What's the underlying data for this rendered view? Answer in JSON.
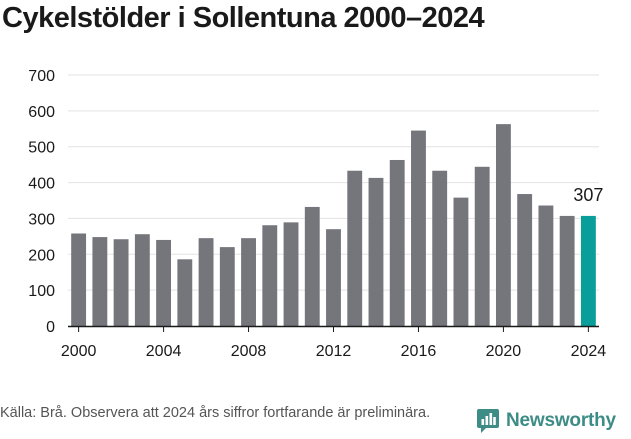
{
  "title": "Cykelstölder i Sollentuna 2000–2024",
  "source": "Källa: Brå. Observera att 2024 års siffror fortfarande är preliminära.",
  "brand": "Newsworthy",
  "colors": {
    "bar": "#75757c",
    "highlight": "#0a9e9a",
    "grid": "#e3e3e3",
    "axis": "#1a1a1a",
    "brand": "#3d8c86"
  },
  "chart_data": {
    "type": "bar",
    "x": [
      2000,
      2001,
      2002,
      2003,
      2004,
      2005,
      2006,
      2007,
      2008,
      2009,
      2010,
      2011,
      2012,
      2013,
      2014,
      2015,
      2016,
      2017,
      2018,
      2019,
      2020,
      2021,
      2022,
      2023,
      2024
    ],
    "values": [
      258,
      248,
      242,
      256,
      240,
      186,
      245,
      220,
      245,
      281,
      289,
      332,
      270,
      433,
      413,
      463,
      545,
      433,
      358,
      444,
      563,
      368,
      336,
      307,
      307
    ],
    "highlight_index": 24,
    "highlight_label": "307",
    "ylim": [
      0,
      700
    ],
    "yticks": [
      0,
      100,
      200,
      300,
      400,
      500,
      600,
      700
    ],
    "xticks": [
      2000,
      2004,
      2008,
      2012,
      2016,
      2020,
      2024
    ],
    "grid": true
  }
}
